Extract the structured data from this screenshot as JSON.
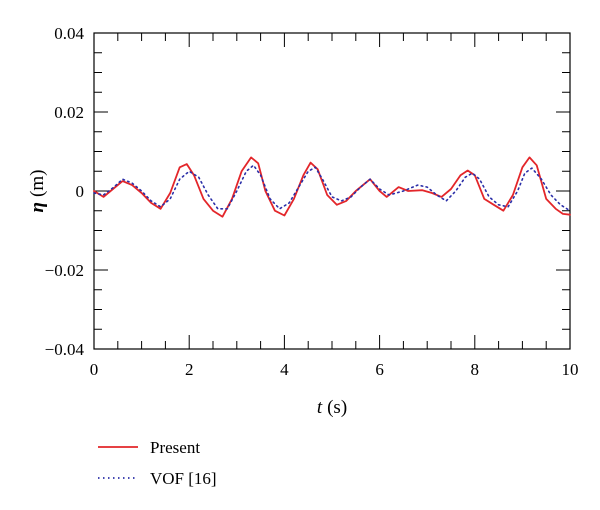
{
  "chart_data": {
    "type": "line",
    "title": "",
    "xlabel_symbol": "t",
    "xlabel_unit": "(s)",
    "ylabel_symbol": "η",
    "ylabel_unit": "(m)",
    "xlim": [
      0,
      10
    ],
    "ylim": [
      -0.04,
      0.04
    ],
    "x_ticks": [
      0,
      2,
      4,
      6,
      8,
      10
    ],
    "x_tick_labels": [
      "0",
      "2",
      "4",
      "6",
      "8",
      "10"
    ],
    "y_ticks": [
      0.04,
      0.02,
      0,
      -0.02,
      -0.04
    ],
    "y_tick_labels": [
      "0.04",
      "0.02",
      "0",
      "−0.02",
      "−0.04"
    ],
    "grid": false,
    "legend_position": "below-left",
    "series": [
      {
        "name": "Present",
        "color": "#e3262a",
        "style": "solid",
        "points": [
          [
            0.0,
            0.0
          ],
          [
            0.2,
            -0.0015
          ],
          [
            0.4,
            0.0005
          ],
          [
            0.6,
            0.0025
          ],
          [
            0.8,
            0.0015
          ],
          [
            1.0,
            -0.0005
          ],
          [
            1.2,
            -0.003
          ],
          [
            1.4,
            -0.0045
          ],
          [
            1.6,
            -0.0005
          ],
          [
            1.8,
            0.006
          ],
          [
            1.95,
            0.0068
          ],
          [
            2.1,
            0.004
          ],
          [
            2.3,
            -0.002
          ],
          [
            2.5,
            -0.005
          ],
          [
            2.7,
            -0.0065
          ],
          [
            2.9,
            -0.002
          ],
          [
            3.1,
            0.005
          ],
          [
            3.3,
            0.0085
          ],
          [
            3.45,
            0.007
          ],
          [
            3.6,
            0.0
          ],
          [
            3.8,
            -0.005
          ],
          [
            4.0,
            -0.0062
          ],
          [
            4.2,
            -0.002
          ],
          [
            4.4,
            0.004
          ],
          [
            4.55,
            0.0072
          ],
          [
            4.7,
            0.0055
          ],
          [
            4.9,
            -0.001
          ],
          [
            5.1,
            -0.0035
          ],
          [
            5.3,
            -0.0025
          ],
          [
            5.5,
            0.0
          ],
          [
            5.8,
            0.003
          ],
          [
            6.0,
            0.0
          ],
          [
            6.15,
            -0.0015
          ],
          [
            6.4,
            0.001
          ],
          [
            6.6,
            0.0
          ],
          [
            6.9,
            0.0002
          ],
          [
            7.1,
            -0.0005
          ],
          [
            7.3,
            -0.0015
          ],
          [
            7.5,
            0.0005
          ],
          [
            7.7,
            0.004
          ],
          [
            7.85,
            0.0052
          ],
          [
            8.0,
            0.004
          ],
          [
            8.2,
            -0.002
          ],
          [
            8.4,
            -0.0035
          ],
          [
            8.6,
            -0.005
          ],
          [
            8.8,
            -0.001
          ],
          [
            9.0,
            0.006
          ],
          [
            9.15,
            0.0085
          ],
          [
            9.3,
            0.0065
          ],
          [
            9.5,
            -0.002
          ],
          [
            9.7,
            -0.0045
          ],
          [
            9.85,
            -0.0058
          ],
          [
            10.0,
            -0.006
          ]
        ]
      },
      {
        "name": "VOF [16]",
        "color": "#2b2fa8",
        "style": "dotted",
        "points": [
          [
            0.0,
            -0.0005
          ],
          [
            0.2,
            -0.001
          ],
          [
            0.4,
            0.0008
          ],
          [
            0.6,
            0.003
          ],
          [
            0.8,
            0.002
          ],
          [
            1.0,
            0.0
          ],
          [
            1.2,
            -0.0025
          ],
          [
            1.4,
            -0.004
          ],
          [
            1.6,
            -0.002
          ],
          [
            1.8,
            0.003
          ],
          [
            2.0,
            0.005
          ],
          [
            2.2,
            0.0035
          ],
          [
            2.4,
            -0.001
          ],
          [
            2.6,
            -0.0045
          ],
          [
            2.8,
            -0.0045
          ],
          [
            3.0,
            0.0
          ],
          [
            3.2,
            0.005
          ],
          [
            3.35,
            0.0065
          ],
          [
            3.5,
            0.004
          ],
          [
            3.7,
            -0.002
          ],
          [
            3.9,
            -0.0045
          ],
          [
            4.1,
            -0.003
          ],
          [
            4.3,
            0.001
          ],
          [
            4.5,
            0.005
          ],
          [
            4.65,
            0.006
          ],
          [
            4.8,
            0.003
          ],
          [
            5.0,
            -0.0015
          ],
          [
            5.2,
            -0.0025
          ],
          [
            5.4,
            -0.0015
          ],
          [
            5.6,
            0.001
          ],
          [
            5.8,
            0.003
          ],
          [
            6.0,
            0.0005
          ],
          [
            6.2,
            -0.001
          ],
          [
            6.5,
            0.0
          ],
          [
            6.8,
            0.0015
          ],
          [
            7.0,
            0.001
          ],
          [
            7.2,
            -0.001
          ],
          [
            7.4,
            -0.0025
          ],
          [
            7.6,
            0.0
          ],
          [
            7.8,
            0.0035
          ],
          [
            7.95,
            0.0045
          ],
          [
            8.1,
            0.003
          ],
          [
            8.3,
            -0.0015
          ],
          [
            8.5,
            -0.0035
          ],
          [
            8.7,
            -0.004
          ],
          [
            8.9,
            0.0
          ],
          [
            9.05,
            0.0045
          ],
          [
            9.2,
            0.0058
          ],
          [
            9.4,
            0.003
          ],
          [
            9.6,
            -0.001
          ],
          [
            9.8,
            -0.0035
          ],
          [
            10.0,
            -0.005
          ]
        ]
      }
    ]
  }
}
